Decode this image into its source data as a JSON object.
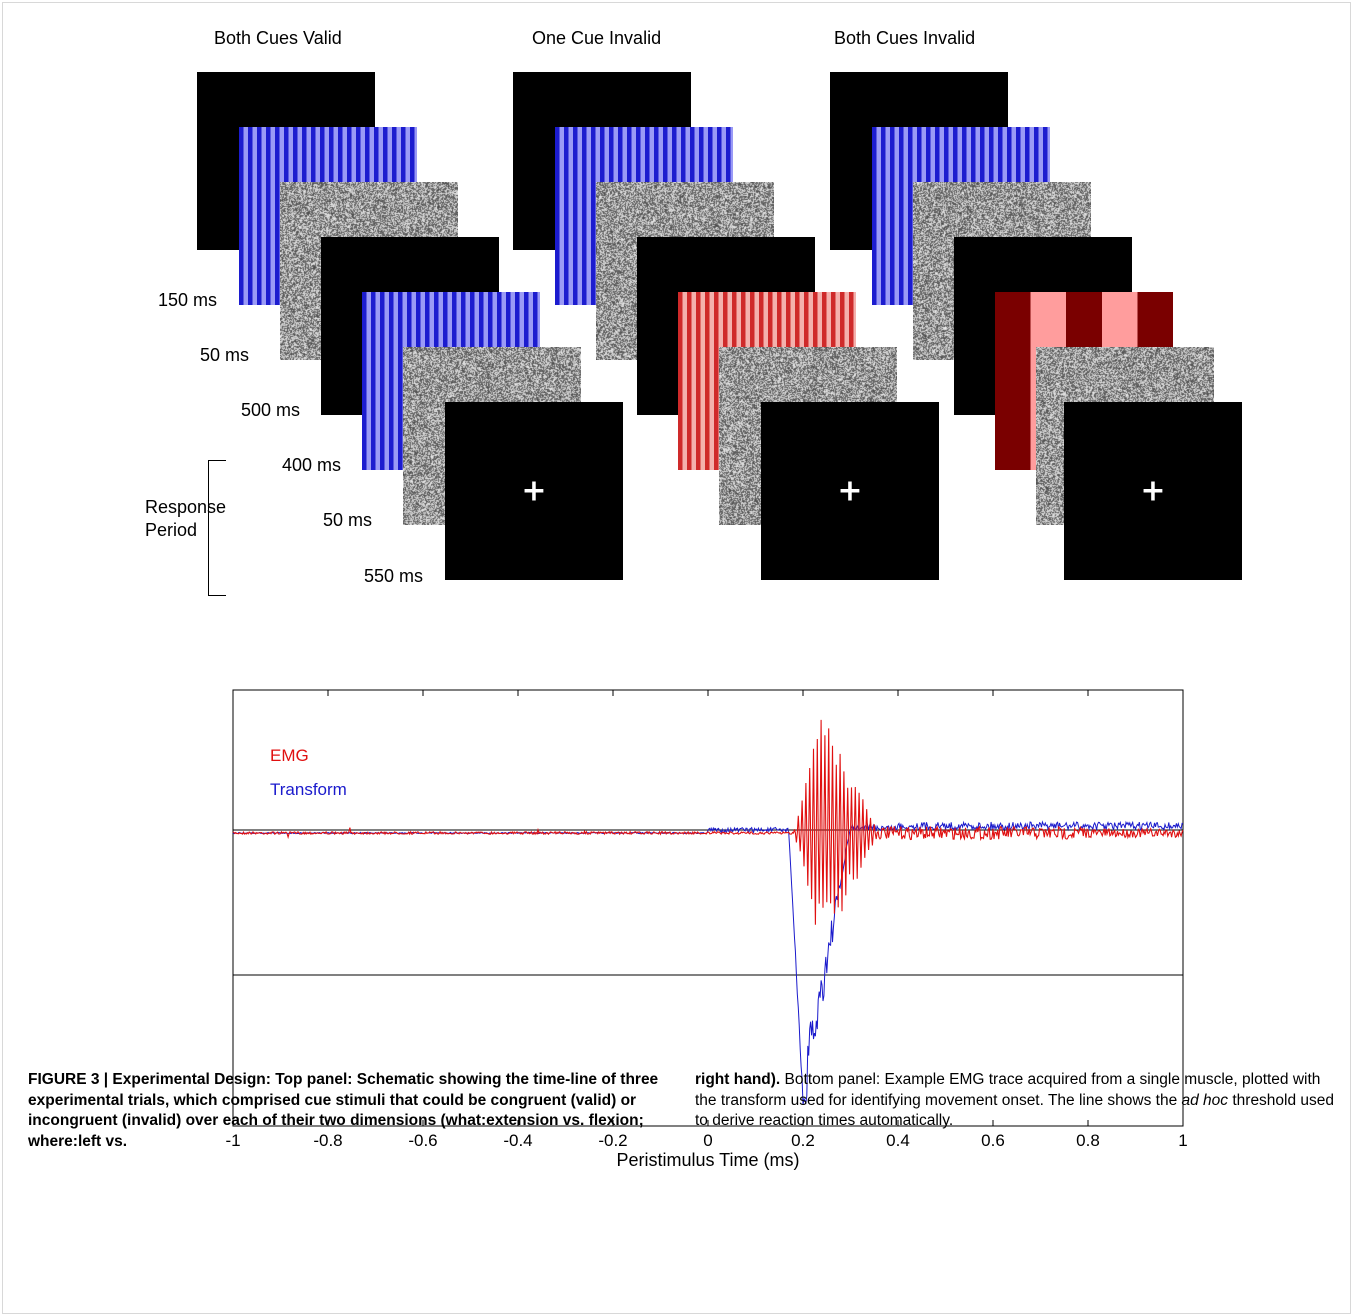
{
  "schematic": {
    "conditions": [
      {
        "title": "Both Cues Valid"
      },
      {
        "title": "One Cue Invalid"
      },
      {
        "title": "Both Cues Invalid"
      }
    ],
    "durations": [
      "150 ms",
      "50 ms",
      "500 ms",
      "400 ms",
      "50 ms",
      "550 ms"
    ],
    "response_period": {
      "line1": "Response",
      "line2": "Period"
    },
    "fixation_symbol": "+"
  },
  "chart_data": {
    "type": "line",
    "xlabel": "Peristimulus Time (ms)",
    "ylabel": "",
    "xlim": [
      -1,
      1
    ],
    "xticks": [
      -1,
      -0.8,
      -0.6,
      -0.4,
      -0.2,
      0,
      0.2,
      0.4,
      0.6,
      0.8,
      1
    ],
    "xtick_labels": [
      "-1",
      "-0.8",
      "-0.6",
      "-0.4",
      "-0.2",
      "0",
      "0.2",
      "0.4",
      "0.6",
      "0.8",
      "1"
    ],
    "legend_position": "top-left",
    "series": [
      {
        "name": "EMG",
        "color": "#e01010",
        "description_points": [
          [
            -1,
            0.0
          ],
          [
            0.18,
            0.0
          ],
          [
            0.19,
            0.5
          ],
          [
            0.2,
            -1.0
          ],
          [
            0.22,
            1.0
          ],
          [
            0.24,
            -1.5
          ],
          [
            0.26,
            0.8
          ],
          [
            0.3,
            -0.6
          ],
          [
            0.35,
            0.3
          ],
          [
            0.4,
            0.0
          ],
          [
            1,
            0.0
          ]
        ]
      },
      {
        "name": "Transform",
        "color": "#1a1acc",
        "description_points": [
          [
            -1,
            0.02
          ],
          [
            0.0,
            0.02
          ],
          [
            0.17,
            0.05
          ],
          [
            0.19,
            -0.5
          ],
          [
            0.2,
            -2.1
          ],
          [
            0.22,
            -1.3
          ],
          [
            0.26,
            -0.4
          ],
          [
            0.35,
            0.05
          ],
          [
            0.4,
            0.1
          ],
          [
            1,
            0.1
          ]
        ]
      }
    ],
    "threshold_line": true
  },
  "caption": {
    "left_bold": "FIGURE 3 | Experimental Design: Top panel: Schematic showing the time-line of three experimental trials, which comprised cue stimuli that could be congruent (valid) or incongruent (invalid) over each of their two dimensions (what:extension vs. flexion; where:left vs.",
    "right_bold": "right hand).",
    "right_text1": " Bottom panel: Example EMG trace acquired from a single muscle, plotted with the transform used for identifying movement onset. The line shows the ",
    "right_ital": "ad hoc",
    "right_text2": " threshold used to derive reaction times automatically."
  }
}
